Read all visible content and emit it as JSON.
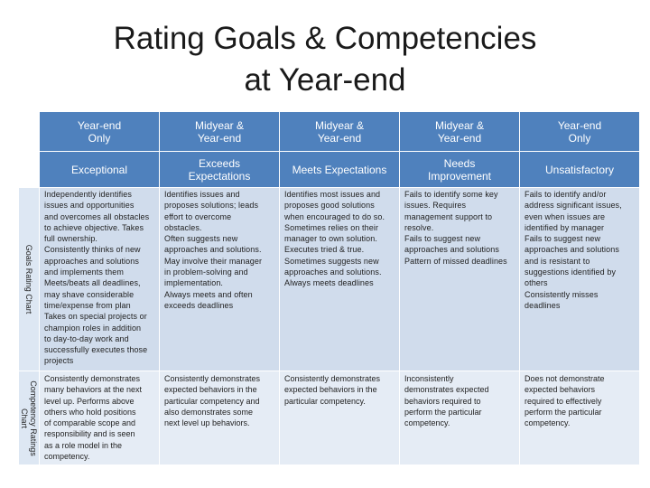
{
  "title": {
    "line1": "Rating Goals & Competencies",
    "line2": "at Year-end"
  },
  "side_labels": {
    "goals": "Goals Rating Chart",
    "competency_line1": "Competency Ratings",
    "competency_line2": "Chart"
  },
  "columns": [
    {
      "period": [
        "Year-end",
        "Only"
      ],
      "rating": [
        "Exceptional"
      ],
      "goals": [
        "Independently identifies",
        "issues and opportunities",
        "and overcomes all obstacles",
        "to achieve objective. Takes",
        "full ownership.",
        "Consistently thinks of new",
        "approaches and solutions",
        "and implements them",
        "Meets/beats all deadlines,",
        "may shave considerable",
        "time/expense from plan",
        "Takes on special projects or",
        "champion roles in addition",
        "to day-to-day work and",
        "successfully executes those",
        "projects"
      ],
      "competency": [
        "Consistently demonstrates",
        "many behaviors at the next",
        "level up. Performs above",
        "others who hold positions",
        "of comparable scope and",
        "responsibility and is seen",
        "as a role model in the",
        "competency."
      ]
    },
    {
      "period": [
        "Midyear &",
        "Year-end"
      ],
      "rating": [
        "Exceeds",
        "Expectations"
      ],
      "goals": [
        "Identifies issues and",
        "proposes solutions; leads",
        "effort to overcome",
        "obstacles.",
        "Often suggests new",
        "approaches and solutions.",
        "May involve their manager",
        "in problem-solving and",
        "implementation.",
        "Always meets and often",
        "exceeds deadlines"
      ],
      "competency": [
        "Consistently demonstrates",
        "expected behaviors in the",
        "particular competency and",
        "also demonstrates some",
        "next level up behaviors."
      ]
    },
    {
      "period": [
        "Midyear &",
        "Year-end"
      ],
      "rating": [
        "Meets Expectations"
      ],
      "goals": [
        "Identifies most issues and",
        "proposes good solutions",
        "when encouraged to do so.",
        "Sometimes relies on their",
        "manager to own solution.",
        "Executes tried & true.",
        "Sometimes suggests new",
        "approaches and solutions.",
        "Always meets deadlines"
      ],
      "competency": [
        "Consistently demonstrates",
        "expected behaviors in the",
        "particular competency."
      ]
    },
    {
      "period": [
        "Midyear &",
        "Year-end"
      ],
      "rating": [
        "Needs",
        "Improvement"
      ],
      "goals": [
        "Fails to identify some key",
        "issues. Requires",
        "management support to",
        "resolve.",
        "Fails to suggest new",
        "approaches and solutions",
        "Pattern of missed deadlines"
      ],
      "competency": [
        "Inconsistently",
        "demonstrates expected",
        "behaviors required to",
        "perform the particular",
        "competency."
      ]
    },
    {
      "period": [
        "Year-end",
        "Only"
      ],
      "rating": [
        "Unsatisfactory"
      ],
      "goals": [
        "Fails to identify and/or",
        "address significant issues,",
        "even when issues are",
        "identified by manager",
        "Fails to suggest new",
        "approaches and solutions",
        "and is resistant to",
        "suggestions identified by",
        "others",
        "Consistently misses",
        "deadlines"
      ],
      "competency": [
        "Does not demonstrate",
        "expected behaviors",
        "required to effectively",
        "perform the particular",
        "competency."
      ]
    }
  ]
}
